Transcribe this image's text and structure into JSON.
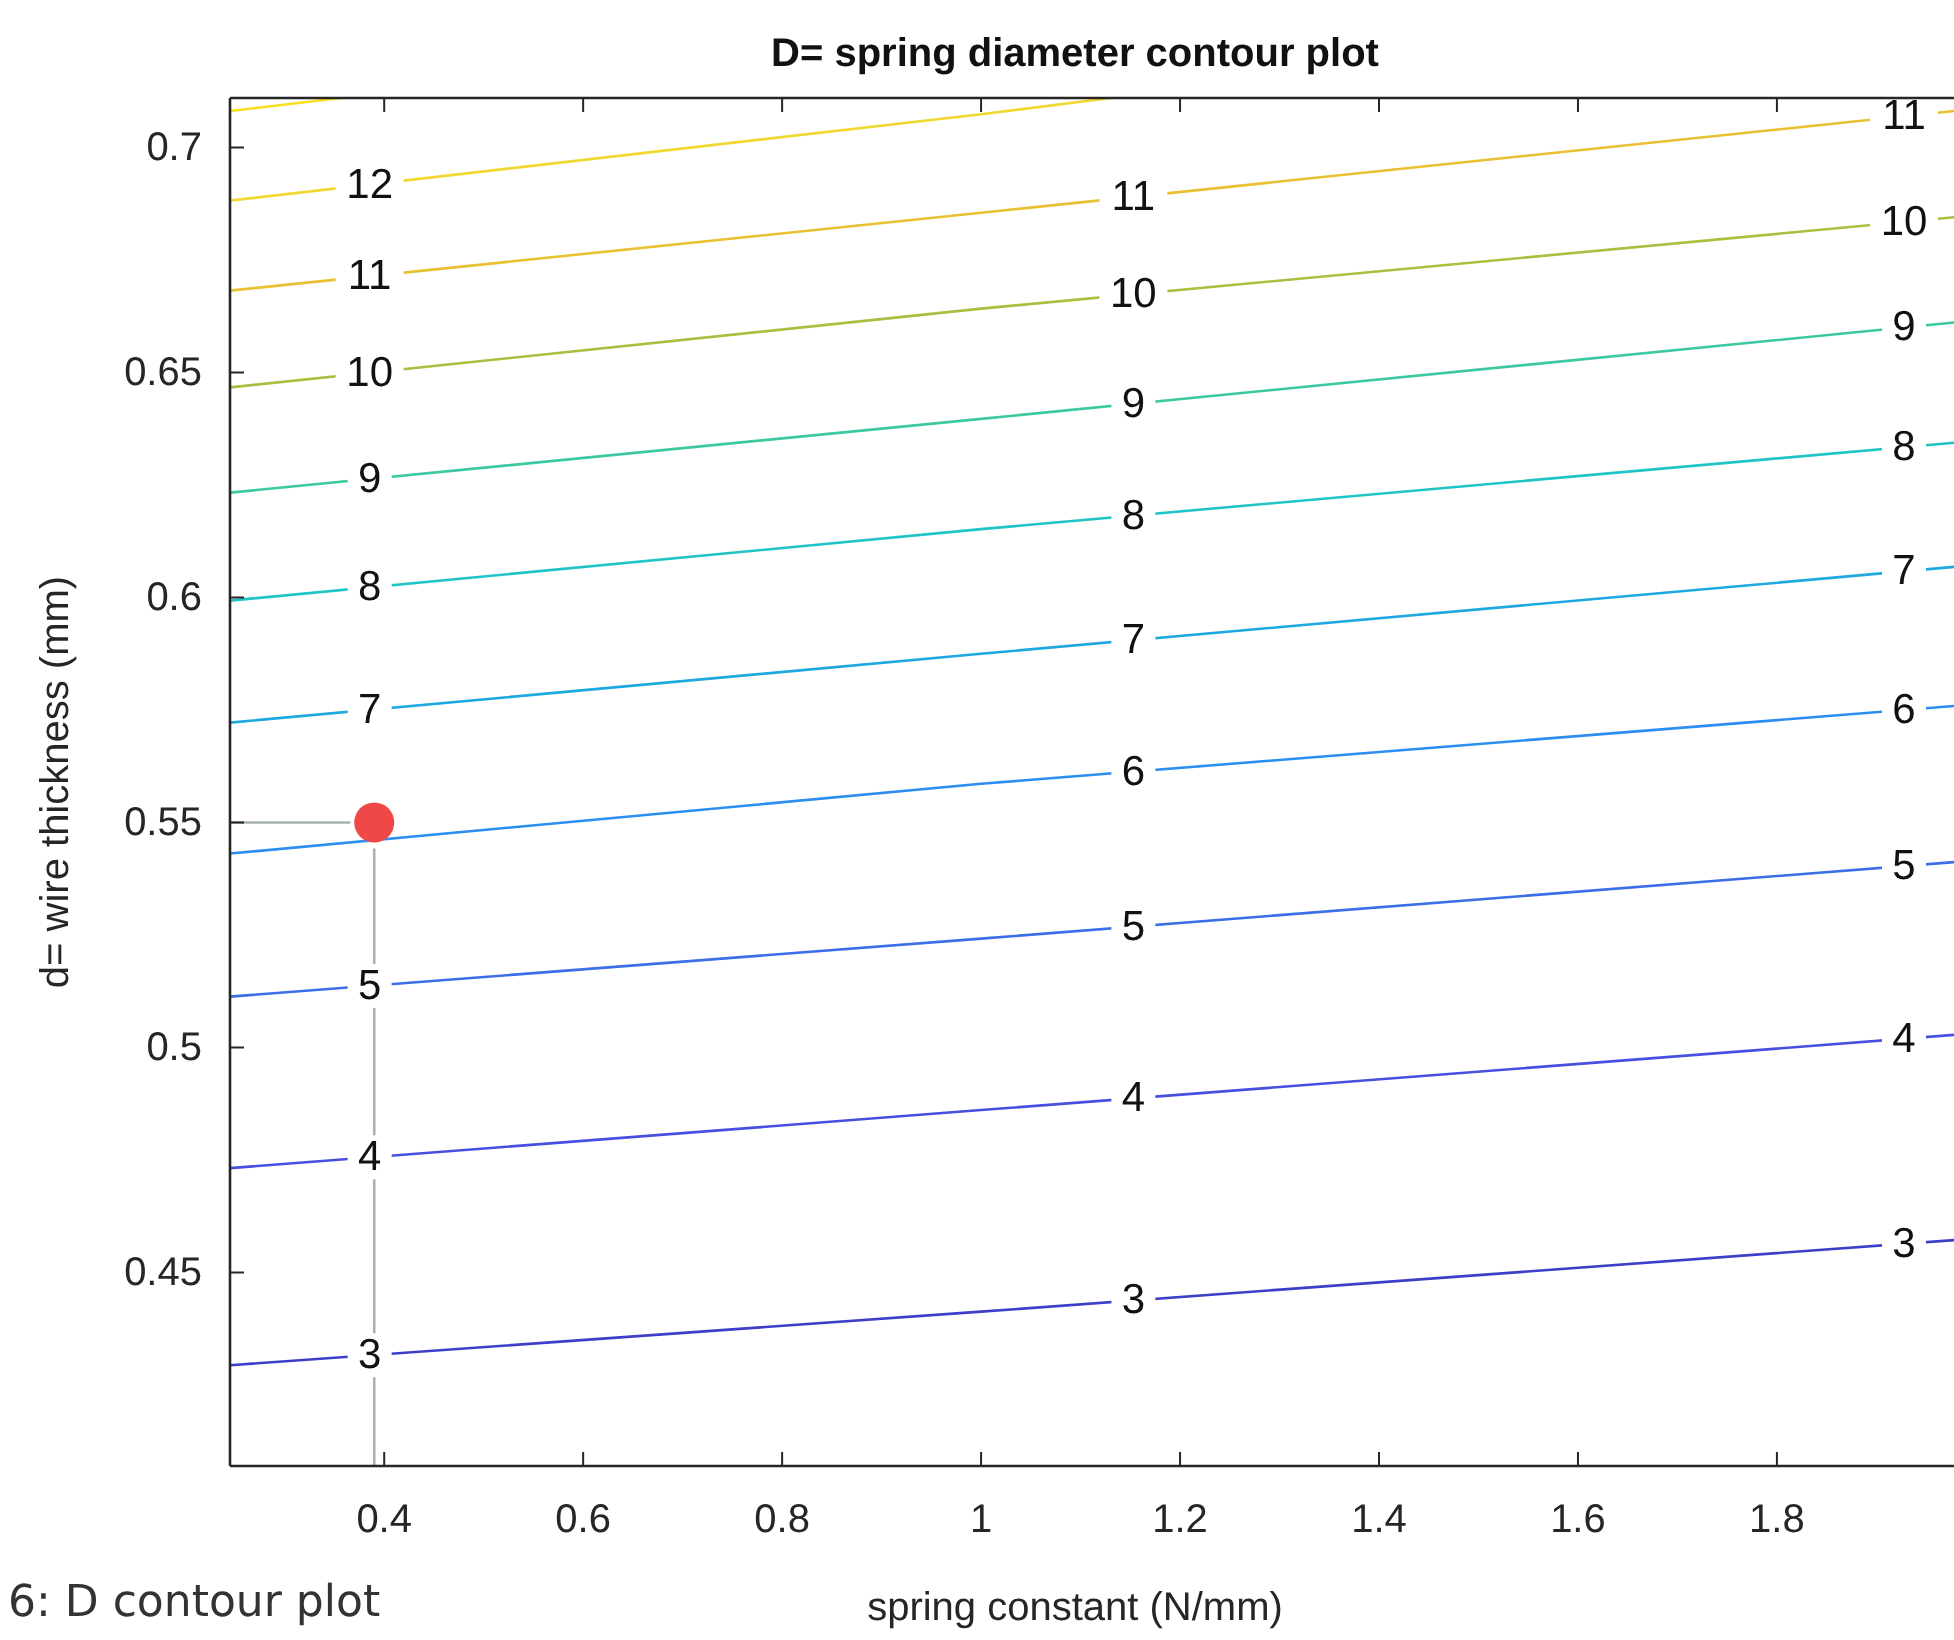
{
  "chart_data": {
    "type": "line",
    "title": "D= spring diameter contour plot",
    "xlabel": "spring constant (N/mm)",
    "ylabel": "d= wire thickness (mm)",
    "xlim": [
      0.245,
      1.978
    ],
    "ylim": [
      0.407,
      0.711
    ],
    "xticks": [
      0.4,
      0.6,
      0.8,
      1,
      1.2,
      1.4,
      1.6,
      1.8
    ],
    "yticks": [
      0.45,
      0.5,
      0.55,
      0.6,
      0.65,
      0.7
    ],
    "grid": false,
    "annotations": [
      "6: D contour plot"
    ],
    "series": [
      {
        "name": "3",
        "color": "#3d3fc8",
        "x": [
          0.245,
          1.0,
          1.978
        ],
        "values": [
          0.4294,
          0.4413,
          0.4572
        ]
      },
      {
        "name": "4",
        "color": "#4650e0",
        "x": [
          0.245,
          1.0,
          1.978
        ],
        "values": [
          0.4732,
          0.4861,
          0.5028
        ]
      },
      {
        "name": "5",
        "color": "#3c6ee8",
        "x": [
          0.245,
          1.0,
          1.978
        ],
        "values": [
          0.5113,
          0.5242,
          0.5412
        ]
      },
      {
        "name": "6",
        "color": "#2c8ef0",
        "x": [
          0.245,
          1.0,
          1.978
        ],
        "values": [
          0.5431,
          0.5586,
          0.5759
        ]
      },
      {
        "name": "7",
        "color": "#1ea8e0",
        "x": [
          0.245,
          1.0,
          1.978
        ],
        "values": [
          0.5722,
          0.5875,
          0.6068
        ]
      },
      {
        "name": "8",
        "color": "#20c4c4",
        "x": [
          0.245,
          1.0,
          1.978
        ],
        "values": [
          0.5993,
          0.6152,
          0.6344
        ]
      },
      {
        "name": "9",
        "color": "#3cc8a0",
        "x": [
          0.245,
          1.0,
          1.978
        ],
        "values": [
          0.6233,
          0.6397,
          0.6611
        ]
      },
      {
        "name": "10",
        "color": "#a8c040",
        "x": [
          0.245,
          1.0,
          1.978
        ],
        "values": [
          0.6467,
          0.6642,
          0.6845
        ]
      },
      {
        "name": "11",
        "color": "#e8c030",
        "x": [
          0.245,
          1.0,
          1.978
        ],
        "values": [
          0.6682,
          0.6855,
          0.7081
        ]
      },
      {
        "name": "12",
        "color": "#f0d830",
        "x": [
          0.245,
          1.0,
          1.13
        ],
        "values": [
          0.6882,
          0.7074,
          0.711
        ]
      },
      {
        "color": "#f8e020",
        "x": [
          0.245,
          0.356
        ],
        "values": [
          0.7081,
          0.711
        ]
      },
      {
        "color": "#a8b2b0",
        "x": [
          0.245,
          0.365
        ],
        "values": [
          0.55,
          0.55
        ]
      },
      {
        "color": "#a8b2b0",
        "x": [
          0.39,
          0.39
        ],
        "values": [
          0.544,
          0.407
        ]
      },
      {
        "type": "scatter",
        "color": "#f04848",
        "marker": "circle",
        "x": [
          0.39
        ],
        "values": [
          0.55
        ]
      }
    ]
  }
}
